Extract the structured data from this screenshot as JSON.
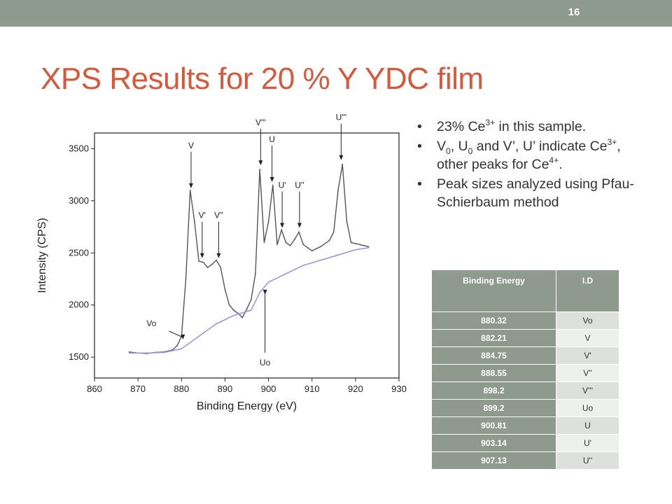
{
  "slide": {
    "number": "16",
    "title": "XPS Results for 20 % Y YDC film"
  },
  "bullets": [
    {
      "pre": "23% Ce",
      "sup": "3+",
      "post": " in this sample."
    },
    {
      "text": "V0, U0 and V’, U’ indicate Ce3+, other peaks for Ce4+."
    },
    {
      "text": "Peak sizes analyzed using Pfau-Schierbaum method"
    }
  ],
  "bullet2_parts": {
    "v": "V",
    "v_sub": "0",
    "u": ", U",
    "u_sub": "0",
    "rest": " and V’, U’ indicate Ce",
    "ce_sup": "3+",
    "mid": ", other peaks for Ce",
    "ce4_sup": "4+",
    "end": "."
  },
  "table": {
    "headers": [
      "Binding Energy",
      "I.D"
    ],
    "rows": [
      [
        "880.32",
        "Vo"
      ],
      [
        "882.21",
        "V"
      ],
      [
        "884.75",
        "V'"
      ],
      [
        "888.55",
        "V''"
      ],
      [
        "898.2",
        "V'''"
      ],
      [
        "899.2",
        "Uo"
      ],
      [
        "900.81",
        "U"
      ],
      [
        "903.14",
        "U'"
      ],
      [
        "907.13",
        "U''"
      ]
    ]
  },
  "chart_data": {
    "type": "line",
    "xlabel": "Binding Energy (eV)",
    "ylabel": "Intensity (CPS)",
    "xlim": [
      860,
      930
    ],
    "ylim": [
      1300,
      3650
    ],
    "xticks": [
      860,
      870,
      880,
      890,
      900,
      910,
      920,
      930
    ],
    "yticks": [
      1500,
      2000,
      2500,
      3000,
      3500
    ],
    "series": [
      {
        "name": "",
        "color": "#555555",
        "x": [
          868,
          870,
          872,
          874,
          876,
          878,
          879,
          880,
          881,
          882,
          883,
          884,
          885,
          886,
          887,
          888,
          889,
          890,
          891,
          892,
          893,
          894,
          895,
          896,
          897,
          898,
          899,
          900,
          901,
          902,
          903,
          904,
          905,
          906,
          907,
          908,
          909,
          910,
          912,
          914,
          915,
          916,
          917,
          918,
          919,
          920,
          921,
          922,
          923
        ],
        "y": [
          1550,
          1540,
          1535,
          1545,
          1550,
          1570,
          1610,
          1700,
          2250,
          3100,
          2800,
          2420,
          2410,
          2360,
          2390,
          2430,
          2360,
          2150,
          2000,
          1950,
          1920,
          1880,
          1960,
          2050,
          2300,
          3300,
          2600,
          2800,
          3150,
          2580,
          2720,
          2600,
          2570,
          2630,
          2700,
          2580,
          2550,
          2520,
          2560,
          2620,
          2700,
          3100,
          3350,
          2800,
          2600,
          2590,
          2580,
          2570,
          2560
        ]
      },
      {
        "name": "",
        "color": "#9999dd",
        "x": [
          868,
          872,
          876,
          880,
          884,
          888,
          892,
          896,
          898,
          900,
          904,
          908,
          912,
          916,
          920,
          923
        ],
        "y": [
          1540,
          1540,
          1545,
          1580,
          1700,
          1820,
          1900,
          1950,
          2120,
          2220,
          2300,
          2380,
          2430,
          2480,
          2530,
          2550
        ]
      }
    ],
    "annotations": [
      {
        "label": "V",
        "x": 882.2,
        "y": 3100
      },
      {
        "label": "V'",
        "x": 884.75,
        "y": 2430
      },
      {
        "label": "V''",
        "x": 888.55,
        "y": 2430
      },
      {
        "label": "V'''",
        "x": 898.2,
        "y": 3320
      },
      {
        "label": "U",
        "x": 900.81,
        "y": 3160
      },
      {
        "label": "U'",
        "x": 903.14,
        "y": 2720
      },
      {
        "label": "U''",
        "x": 907.13,
        "y": 2720
      },
      {
        "label": "U'''",
        "x": 916.7,
        "y": 3370
      },
      {
        "label": "Vo",
        "x": 880.32,
        "y": 1650
      },
      {
        "label": "Uo",
        "x": 899.2,
        "y": 2080
      }
    ]
  }
}
